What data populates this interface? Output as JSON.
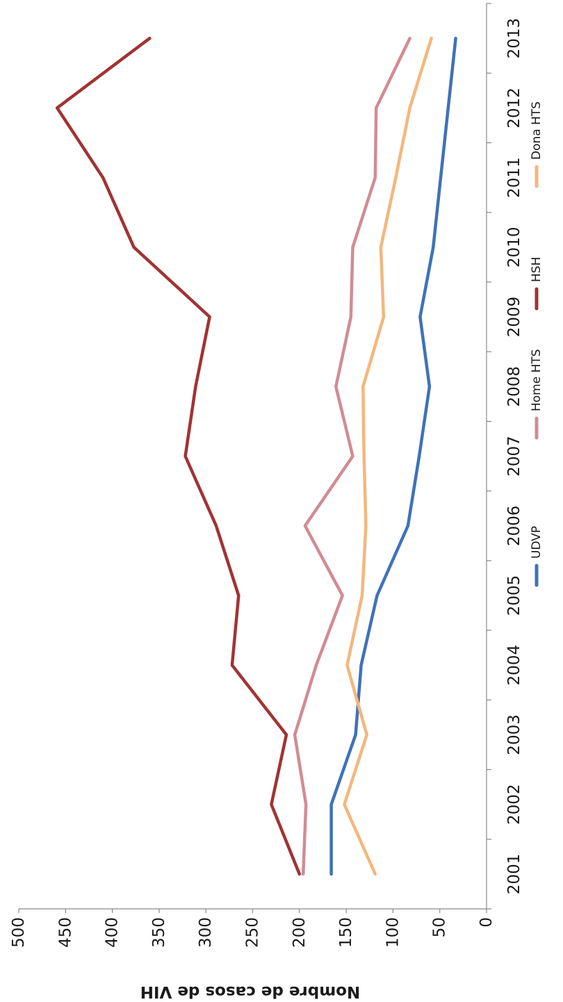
{
  "chart_data": {
    "type": "line",
    "title": "",
    "xlabel": "",
    "ylabel": "Nombre de casos de VIH",
    "x": [
      2001,
      2002,
      2003,
      2004,
      2005,
      2006,
      2007,
      2008,
      2009,
      2010,
      2011,
      2012,
      2013
    ],
    "x_tick_labels": [
      "2001",
      "2002",
      "2003",
      "2004",
      "2005",
      "2006",
      "2007",
      "2008",
      "2009",
      "2010",
      "2011",
      "2012",
      "2013"
    ],
    "ylim": [
      0,
      500
    ],
    "y_ticks": [
      0,
      50,
      100,
      150,
      200,
      250,
      300,
      350,
      400,
      450,
      500
    ],
    "y_tick_labels": [
      "0",
      "50",
      "100",
      "150",
      "200",
      "250",
      "300",
      "350",
      "400",
      "450",
      "500"
    ],
    "orientation": "rotated-90-clockwise",
    "grid": false,
    "legend_position": "bottom",
    "series": [
      {
        "name": "UDVP",
        "color": "#3f72b8",
        "values": [
          166,
          166,
          140,
          134,
          117,
          84,
          72,
          61,
          71,
          57,
          49,
          41,
          33
        ]
      },
      {
        "name": "Home HTS",
        "color": "#d18c93",
        "values": [
          196,
          193,
          205,
          182,
          154,
          194,
          143,
          161,
          145,
          143,
          119,
          118,
          82
        ]
      },
      {
        "name": "HSH",
        "color": "#a13334",
        "values": [
          200,
          230,
          214,
          272,
          265,
          289,
          322,
          311,
          296,
          377,
          410,
          459,
          360
        ]
      },
      {
        "name": "Dona HTS",
        "color": "#f3b77d",
        "values": [
          119,
          152,
          128,
          149,
          133,
          129,
          131,
          132,
          110,
          113,
          97,
          82,
          59
        ]
      }
    ]
  }
}
